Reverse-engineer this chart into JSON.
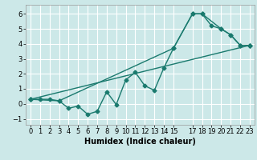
{
  "xlabel": "Humidex (Indice chaleur)",
  "bg_color": "#cce8e8",
  "grid_color": "#ffffff",
  "line_color": "#1a7a6e",
  "xlim": [
    -0.5,
    23.5
  ],
  "ylim": [
    -1.4,
    6.6
  ],
  "xticks": [
    0,
    1,
    2,
    3,
    4,
    5,
    6,
    7,
    8,
    9,
    10,
    11,
    12,
    13,
    14,
    15,
    17,
    18,
    19,
    20,
    21,
    22,
    23
  ],
  "yticks": [
    -1,
    0,
    1,
    2,
    3,
    4,
    5,
    6
  ],
  "series1_x": [
    0,
    1,
    2,
    3,
    4,
    5,
    6,
    7,
    8,
    9,
    10,
    11,
    12,
    13,
    14,
    15,
    17,
    18,
    19,
    20,
    21,
    22,
    23
  ],
  "series1_y": [
    0.3,
    0.3,
    0.3,
    0.2,
    -0.3,
    -0.15,
    -0.7,
    -0.5,
    0.8,
    -0.05,
    1.6,
    2.1,
    1.2,
    0.9,
    2.4,
    3.7,
    6.0,
    6.0,
    5.2,
    5.0,
    4.6,
    3.9,
    3.9
  ],
  "series2_x": [
    0,
    3,
    15,
    17,
    18,
    20,
    21,
    22,
    23
  ],
  "series2_y": [
    0.3,
    0.2,
    3.7,
    6.0,
    6.0,
    5.0,
    4.6,
    3.9,
    3.9
  ],
  "series3_x": [
    0,
    23
  ],
  "series3_y": [
    0.3,
    3.9
  ],
  "marker": "D",
  "markersize": 2.5,
  "linewidth": 1.0,
  "xlabel_fontsize": 7,
  "tick_fontsize": 6
}
